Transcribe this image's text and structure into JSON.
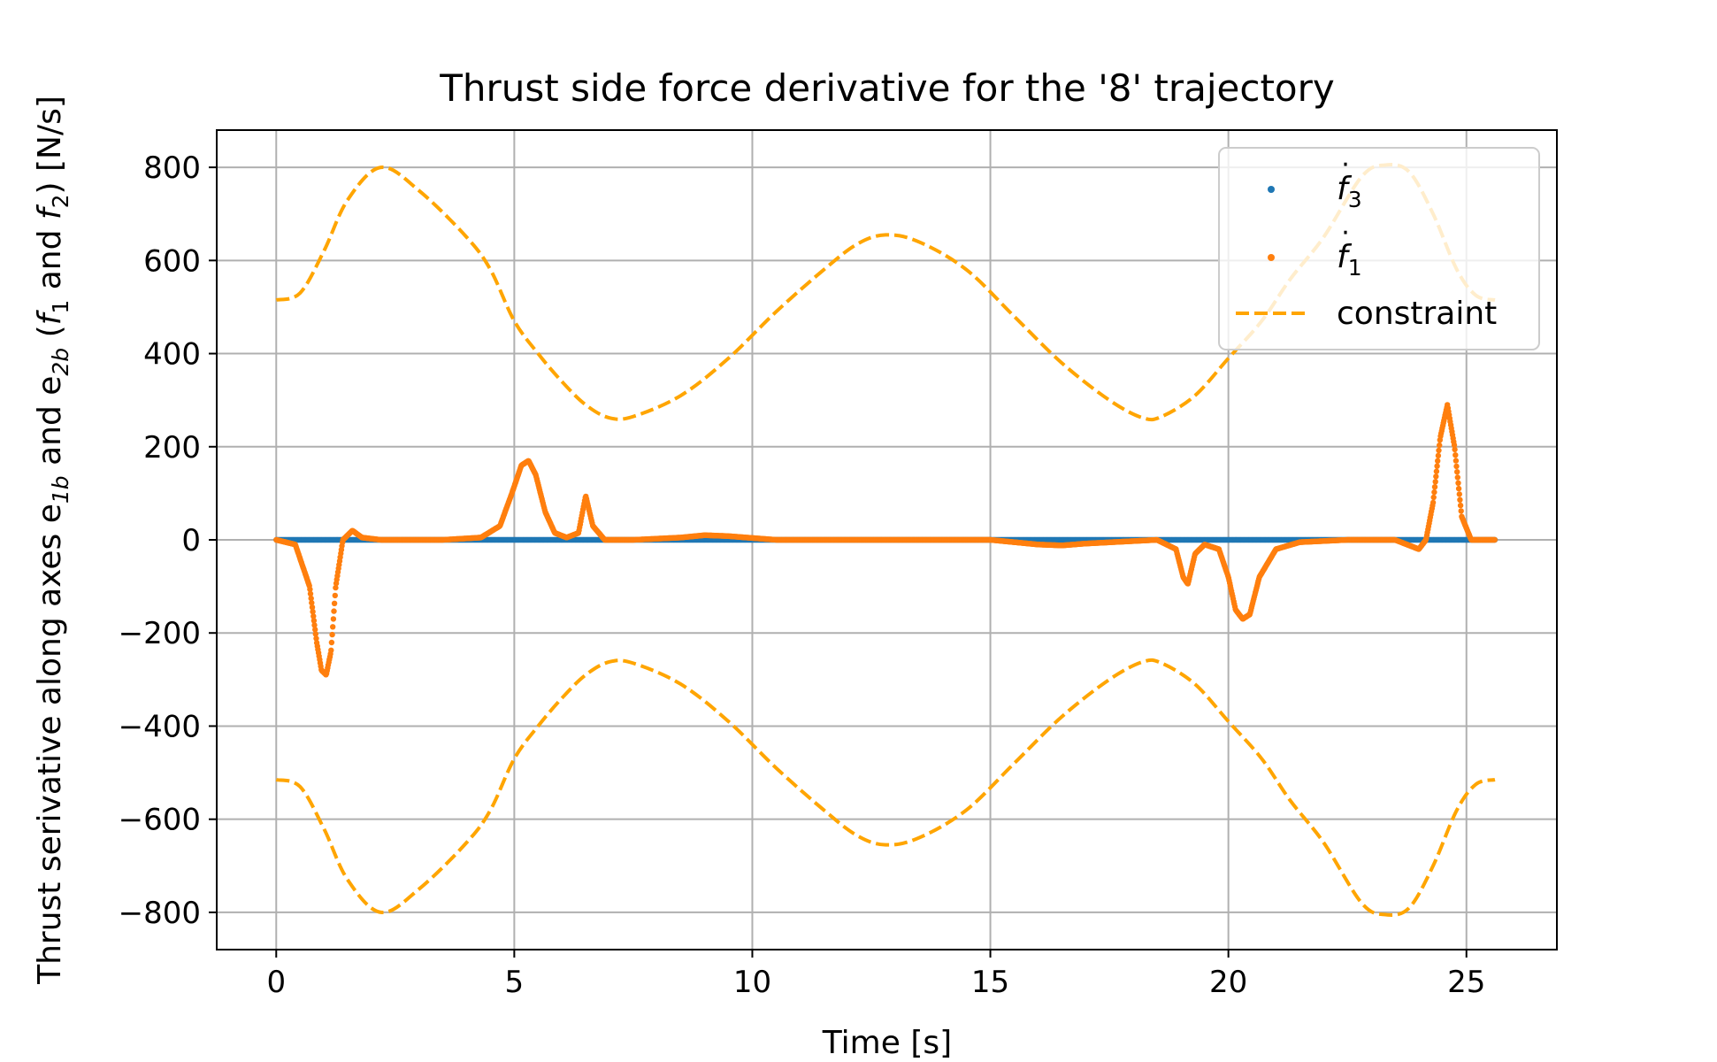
{
  "chart_data": {
    "type": "line",
    "title": "Thrust side force derivative for the '8' trajectory",
    "xlabel": "Time [s]",
    "ylabel": {
      "prefix": "Thrust serivative along axes e",
      "sub1": "1b",
      "mid": " and e",
      "sub2": "2b",
      "open": " (",
      "f1": "f",
      "f1sub": "1",
      "and": " and ",
      "f2": "f",
      "f2sub": "2",
      "close": ") [N/s]"
    },
    "xlim": [
      -1.25,
      26.9
    ],
    "ylim": [
      -880,
      880
    ],
    "xticks": [
      0,
      5,
      10,
      15,
      20,
      25
    ],
    "yticks": [
      800,
      600,
      400,
      200,
      0,
      -200,
      -400,
      -600,
      -800
    ],
    "ytick_labels": [
      "800",
      "600",
      "400",
      "200",
      "0",
      "−200",
      "−400",
      "−600",
      "−800"
    ],
    "xtick_labels": [
      "0",
      "5",
      "10",
      "15",
      "20",
      "25"
    ],
    "grid": true,
    "legend_position": "top-right",
    "legend": [
      {
        "label_base": "f",
        "label_sub": "3",
        "marker": "dot",
        "color": "#1f77b4"
      },
      {
        "label_base": "f",
        "label_sub": "1",
        "marker": "dot",
        "color": "#ff7f0e"
      },
      {
        "label": "constraint",
        "marker": "dashed",
        "color": "#ffa500"
      }
    ],
    "series": [
      {
        "name": "f3",
        "color": "#1f77b4",
        "style": "dots",
        "x": [
          0,
          25.6
        ],
        "y": [
          0,
          0
        ]
      },
      {
        "name": "f1",
        "color": "#ff7f0e",
        "style": "dots",
        "x": [
          0,
          0.4,
          0.7,
          0.85,
          0.95,
          1.05,
          1.15,
          1.25,
          1.4,
          1.6,
          1.8,
          2.2,
          3.5,
          4.3,
          4.7,
          4.95,
          5.15,
          5.3,
          5.45,
          5.65,
          5.85,
          6.1,
          6.35,
          6.5,
          6.65,
          6.9,
          7.5,
          8.5,
          9.0,
          9.5,
          10.5,
          15,
          16,
          16.5,
          17,
          18.5,
          18.9,
          19.05,
          19.15,
          19.3,
          19.5,
          19.8,
          20.0,
          20.15,
          20.3,
          20.45,
          20.65,
          21,
          21.5,
          22.5,
          23.5,
          24.0,
          24.15,
          24.3,
          24.45,
          24.6,
          24.75,
          24.9,
          25.1,
          25.6
        ],
        "y": [
          0,
          -10,
          -100,
          -220,
          -280,
          -290,
          -240,
          -100,
          0,
          20,
          5,
          0,
          0,
          5,
          30,
          100,
          160,
          170,
          140,
          60,
          15,
          5,
          15,
          95,
          30,
          0,
          0,
          5,
          10,
          8,
          0,
          0,
          -10,
          -12,
          -8,
          0,
          -20,
          -80,
          -95,
          -30,
          -10,
          -20,
          -80,
          -150,
          -170,
          -160,
          -80,
          -20,
          -5,
          0,
          0,
          -20,
          0,
          80,
          220,
          290,
          200,
          50,
          0,
          0
        ]
      },
      {
        "name": "constraint",
        "color": "#ffa500",
        "style": "dashed",
        "mirror": true,
        "x": [
          0,
          0.5,
          1.0,
          1.5,
          2.2,
          3.0,
          4.0,
          4.5,
          5.0,
          5.5,
          6.0,
          6.5,
          7.0,
          7.5,
          8.5,
          9.5,
          10.5,
          11.5,
          12.2,
          12.8,
          13.5,
          14.5,
          15.5,
          16.5,
          17.5,
          18.2,
          18.6,
          19.3,
          20.0,
          20.7,
          21.3,
          22.0,
          22.8,
          23.3,
          23.8,
          24.3,
          24.8,
          25.2,
          25.6
        ],
        "y": [
          515,
          530,
          620,
          730,
          800,
          750,
          650,
          580,
          470,
          400,
          340,
          290,
          262,
          265,
          310,
          390,
          490,
          580,
          635,
          655,
          640,
          580,
          480,
          380,
          300,
          262,
          265,
          310,
          390,
          470,
          560,
          650,
          780,
          805,
          790,
          700,
          580,
          525,
          515
        ]
      }
    ]
  }
}
